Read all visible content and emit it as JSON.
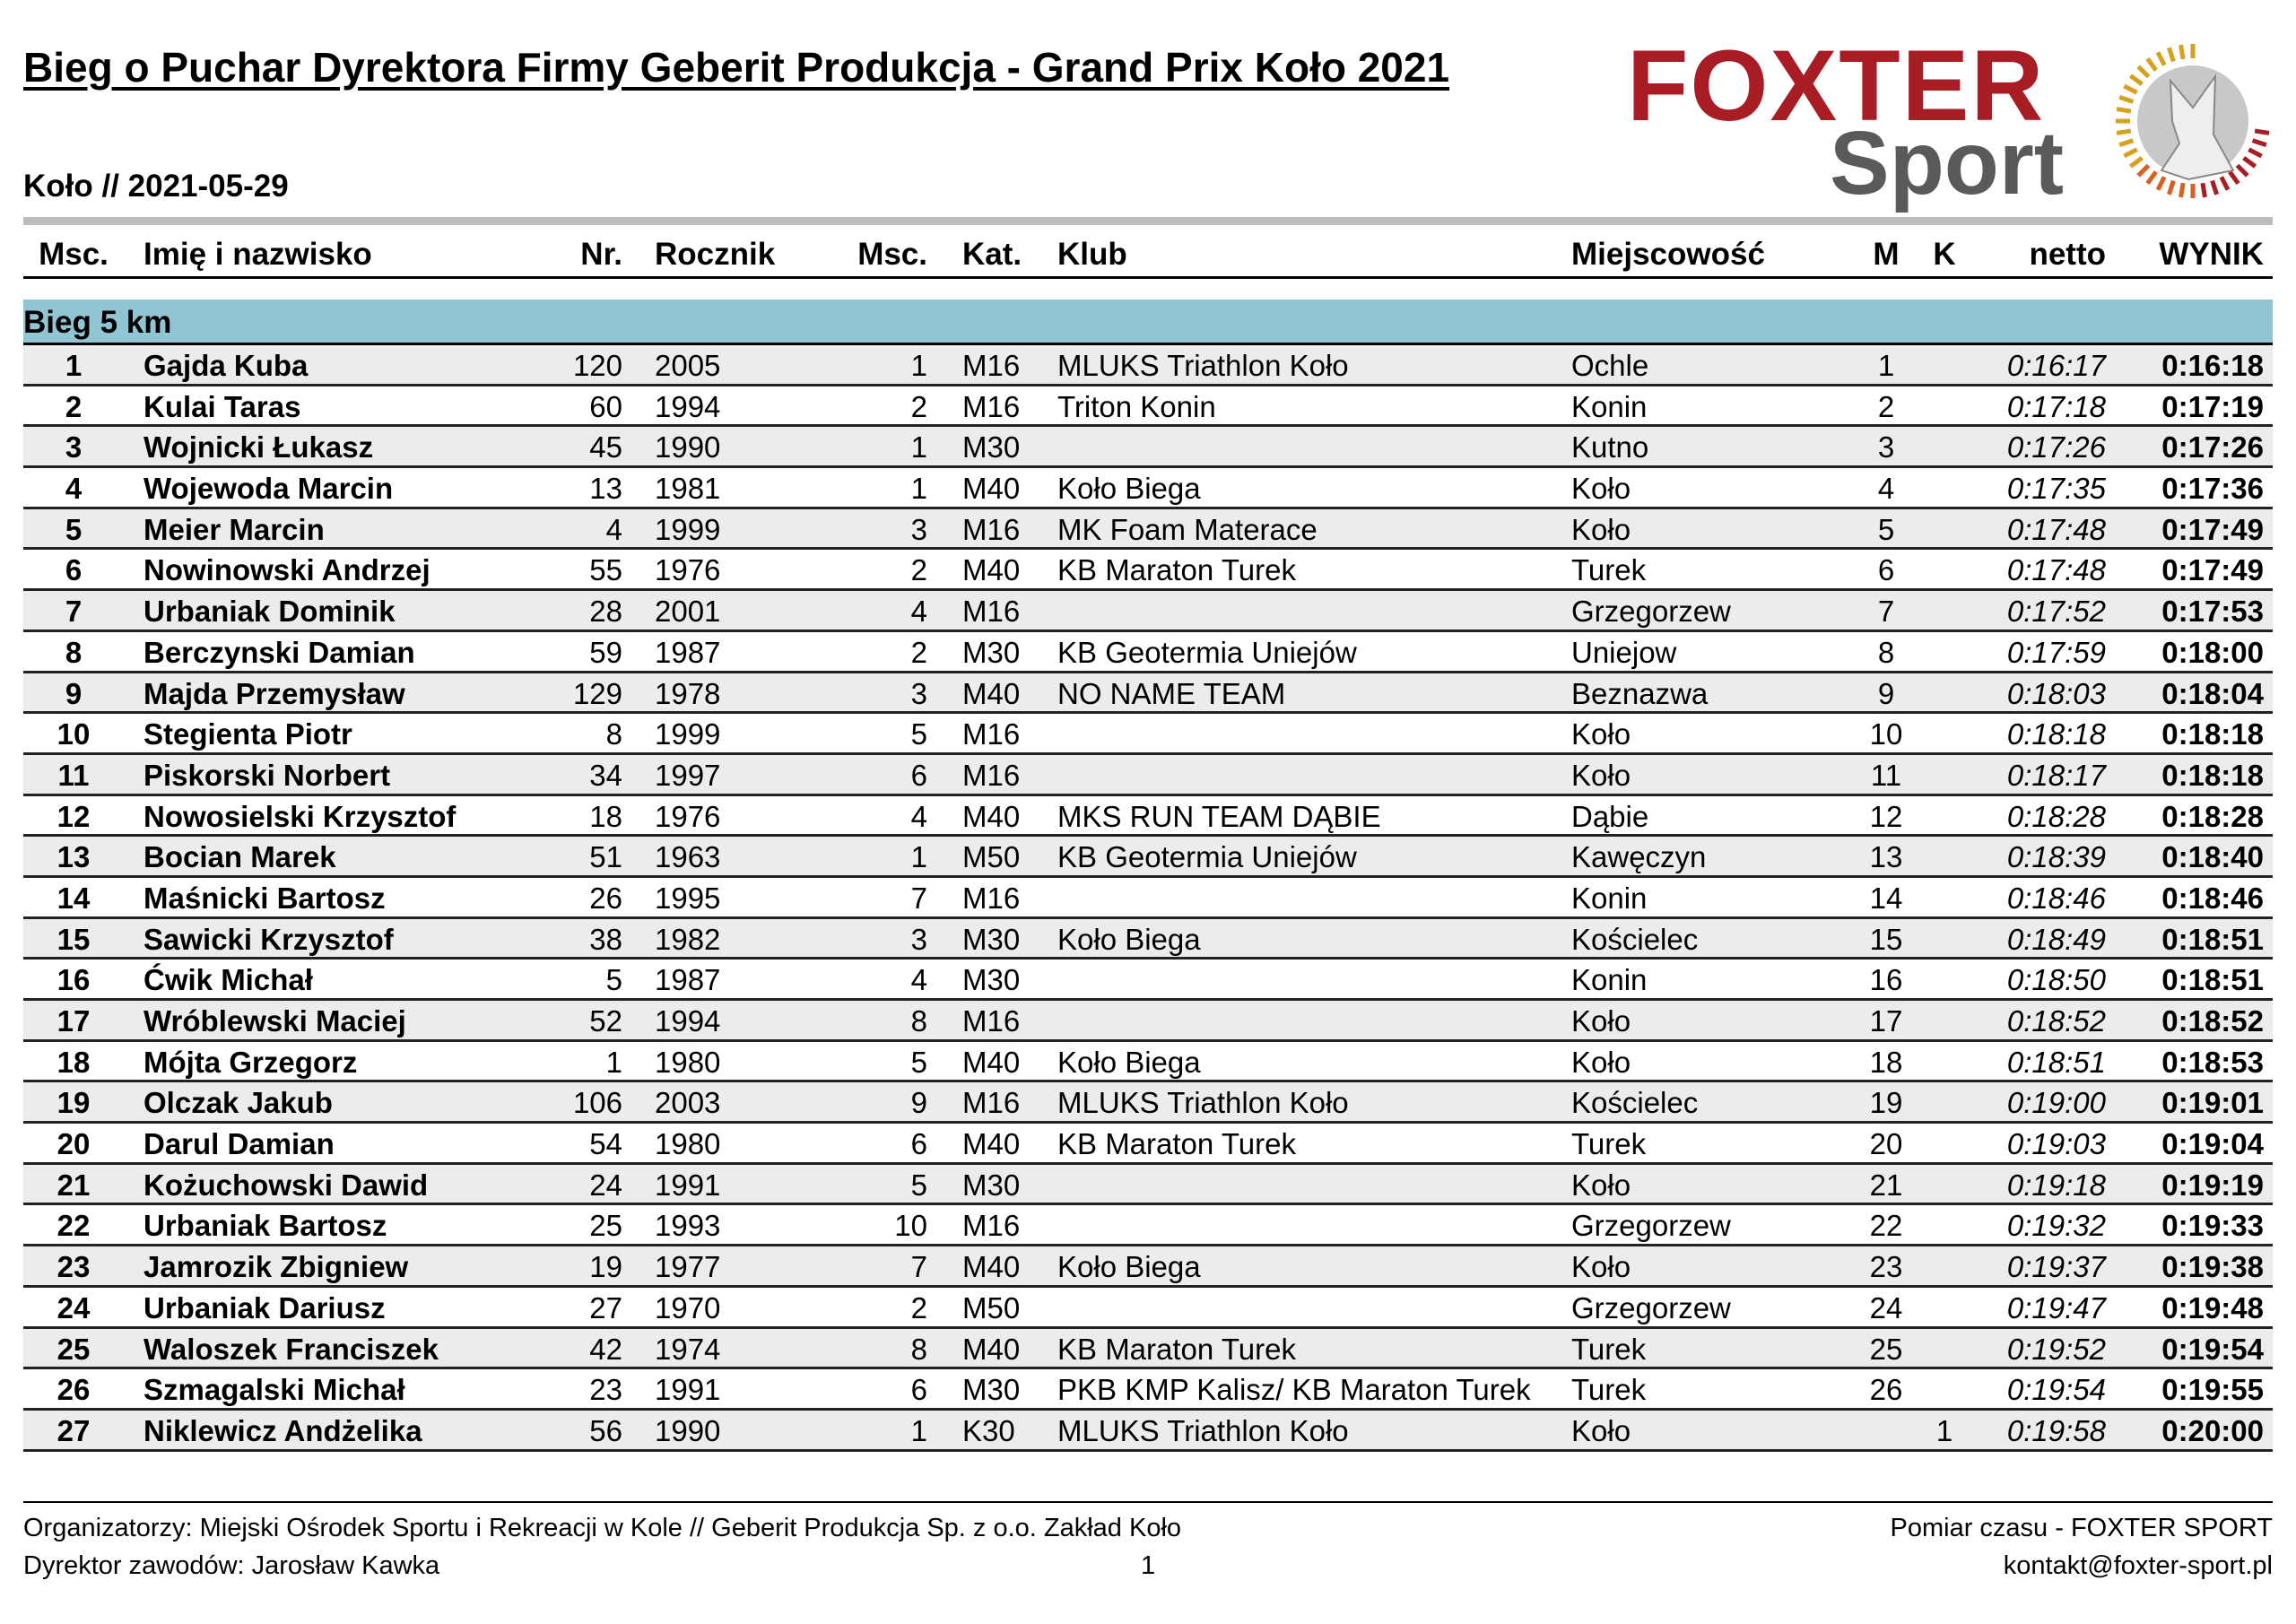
{
  "header": {
    "title": "Bieg o Puchar Dyrektora Firmy Geberit Produkcja - Grand Prix Koło 2021",
    "subtitle": "Koło // 2021-05-29"
  },
  "logo": {
    "line1": "FOXTER",
    "line2": "Sport",
    "colors": {
      "red": "#a81c24",
      "gray": "#5a5a5a"
    }
  },
  "columns": {
    "msc": "Msc.",
    "name": "Imię i nazwisko",
    "nr": "Nr.",
    "year": "Rocznik",
    "msck": "Msc.",
    "kat": "Kat.",
    "club": "Klub",
    "city": "Miejscowość",
    "m": "M",
    "k": "K",
    "net": "netto",
    "res": "WYNIK"
  },
  "section": {
    "label": "Bieg 5 km",
    "color": "#92c5d3"
  },
  "rows": [
    [
      "1",
      "Gajda Kuba",
      "120",
      "2005",
      "1",
      "M16",
      "MLUKS Triathlon Koło",
      "Ochle",
      "1",
      "",
      "0:16:17",
      "0:16:18"
    ],
    [
      "2",
      "Kulai Taras",
      "60",
      "1994",
      "2",
      "M16",
      "Triton Konin",
      "Konin",
      "2",
      "",
      "0:17:18",
      "0:17:19"
    ],
    [
      "3",
      "Wojnicki Łukasz",
      "45",
      "1990",
      "1",
      "M30",
      "",
      "Kutno",
      "3",
      "",
      "0:17:26",
      "0:17:26"
    ],
    [
      "4",
      "Wojewoda Marcin",
      "13",
      "1981",
      "1",
      "M40",
      "Koło Biega",
      "Koło",
      "4",
      "",
      "0:17:35",
      "0:17:36"
    ],
    [
      "5",
      "Meier Marcin",
      "4",
      "1999",
      "3",
      "M16",
      "MK Foam Materace",
      "Koło",
      "5",
      "",
      "0:17:48",
      "0:17:49"
    ],
    [
      "6",
      "Nowinowski Andrzej",
      "55",
      "1976",
      "2",
      "M40",
      "KB Maraton Turek",
      "Turek",
      "6",
      "",
      "0:17:48",
      "0:17:49"
    ],
    [
      "7",
      "Urbaniak Dominik",
      "28",
      "2001",
      "4",
      "M16",
      "",
      "Grzegorzew",
      "7",
      "",
      "0:17:52",
      "0:17:53"
    ],
    [
      "8",
      "Berczynski Damian",
      "59",
      "1987",
      "2",
      "M30",
      "KB Geotermia Uniejów",
      "Uniejow",
      "8",
      "",
      "0:17:59",
      "0:18:00"
    ],
    [
      "9",
      "Majda Przemysław",
      "129",
      "1978",
      "3",
      "M40",
      "NO NAME TEAM",
      "Beznazwa",
      "9",
      "",
      "0:18:03",
      "0:18:04"
    ],
    [
      "10",
      "Stegienta Piotr",
      "8",
      "1999",
      "5",
      "M16",
      "",
      "Koło",
      "10",
      "",
      "0:18:18",
      "0:18:18"
    ],
    [
      "11",
      "Piskorski Norbert",
      "34",
      "1997",
      "6",
      "M16",
      "",
      "Koło",
      "11",
      "",
      "0:18:17",
      "0:18:18"
    ],
    [
      "12",
      "Nowosielski Krzysztof",
      "18",
      "1976",
      "4",
      "M40",
      "MKS RUN TEAM DĄBIE",
      "Dąbie",
      "12",
      "",
      "0:18:28",
      "0:18:28"
    ],
    [
      "13",
      "Bocian Marek",
      "51",
      "1963",
      "1",
      "M50",
      "KB Geotermia Uniejów",
      "Kawęczyn",
      "13",
      "",
      "0:18:39",
      "0:18:40"
    ],
    [
      "14",
      "Maśnicki Bartosz",
      "26",
      "1995",
      "7",
      "M16",
      "",
      "Konin",
      "14",
      "",
      "0:18:46",
      "0:18:46"
    ],
    [
      "15",
      "Sawicki Krzysztof",
      "38",
      "1982",
      "3",
      "M30",
      "Koło Biega",
      "Kościelec",
      "15",
      "",
      "0:18:49",
      "0:18:51"
    ],
    [
      "16",
      "Ćwik Michał",
      "5",
      "1987",
      "4",
      "M30",
      "",
      "Konin",
      "16",
      "",
      "0:18:50",
      "0:18:51"
    ],
    [
      "17",
      "Wróblewski Maciej",
      "52",
      "1994",
      "8",
      "M16",
      "",
      "Koło",
      "17",
      "",
      "0:18:52",
      "0:18:52"
    ],
    [
      "18",
      "Mójta Grzegorz",
      "1",
      "1980",
      "5",
      "M40",
      "Koło Biega",
      "Koło",
      "18",
      "",
      "0:18:51",
      "0:18:53"
    ],
    [
      "19",
      "Olczak Jakub",
      "106",
      "2003",
      "9",
      "M16",
      "MLUKS Triathlon Koło",
      "Kościelec",
      "19",
      "",
      "0:19:00",
      "0:19:01"
    ],
    [
      "20",
      "Darul Damian",
      "54",
      "1980",
      "6",
      "M40",
      "KB Maraton Turek",
      "Turek",
      "20",
      "",
      "0:19:03",
      "0:19:04"
    ],
    [
      "21",
      "Kożuchowski Dawid",
      "24",
      "1991",
      "5",
      "M30",
      "",
      "Koło",
      "21",
      "",
      "0:19:18",
      "0:19:19"
    ],
    [
      "22",
      "Urbaniak Bartosz",
      "25",
      "1993",
      "10",
      "M16",
      "",
      "Grzegorzew",
      "22",
      "",
      "0:19:32",
      "0:19:33"
    ],
    [
      "23",
      "Jamrozik Zbigniew",
      "19",
      "1977",
      "7",
      "M40",
      "Koło Biega",
      "Koło",
      "23",
      "",
      "0:19:37",
      "0:19:38"
    ],
    [
      "24",
      "Urbaniak Dariusz",
      "27",
      "1970",
      "2",
      "M50",
      "",
      "Grzegorzew",
      "24",
      "",
      "0:19:47",
      "0:19:48"
    ],
    [
      "25",
      "Waloszek Franciszek",
      "42",
      "1974",
      "8",
      "M40",
      "KB Maraton Turek",
      "Turek",
      "25",
      "",
      "0:19:52",
      "0:19:54"
    ],
    [
      "26",
      "Szmagalski Michał",
      "23",
      "1991",
      "6",
      "M30",
      "PKB KMP Kalisz/ KB Maraton Turek",
      "Turek",
      "26",
      "",
      "0:19:54",
      "0:19:55"
    ],
    [
      "27",
      "Niklewicz Andżelika",
      "56",
      "1990",
      "1",
      "K30",
      "MLUKS Triathlon Koło",
      "Koło",
      "",
      "1",
      "0:19:58",
      "0:20:00"
    ]
  ],
  "footer": {
    "organizers": "Organizatorzy: Miejski Ośrodek Sportu i Rekreacji w Kole  // Geberit Produkcja Sp. z o.o. Zakład Koło",
    "director": "Dyrektor zawodów: Jarosław Kawka",
    "page": "1",
    "timing": "Pomiar czasu - FOXTER SPORT",
    "contact": "kontakt@foxter-sport.pl"
  }
}
